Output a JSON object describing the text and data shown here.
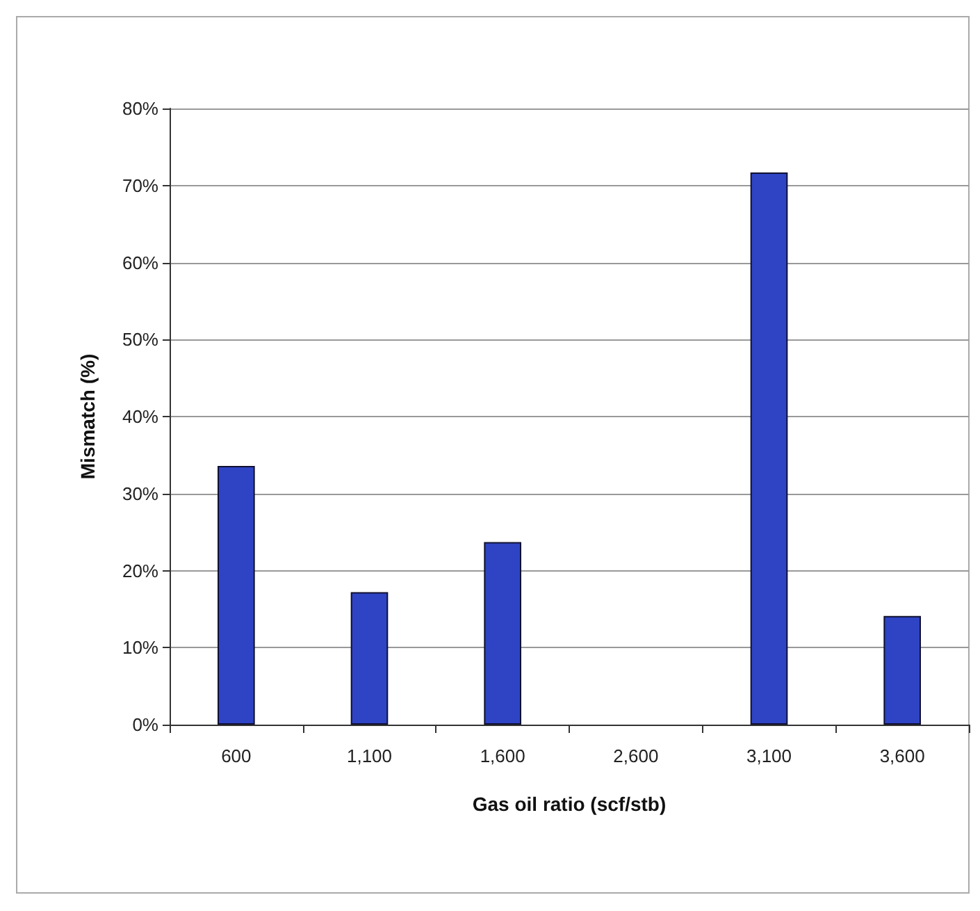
{
  "chart_data": {
    "type": "bar",
    "xlabel": "Gas oil ratio (scf/stb)",
    "ylabel": "Mismatch (%)",
    "categories": [
      "600",
      "1,100",
      "1,600",
      "2,600",
      "3,100",
      "3,600"
    ],
    "values": [
      33.6,
      17.2,
      23.7,
      0,
      71.7,
      14.1
    ],
    "color": "#2e44c4",
    "ylim": [
      0,
      80
    ],
    "yticks": [
      {
        "value": 0,
        "label": "0%"
      },
      {
        "value": 10,
        "label": "10%"
      },
      {
        "value": 20,
        "label": "20%"
      },
      {
        "value": 30,
        "label": "30%"
      },
      {
        "value": 40,
        "label": "40%"
      },
      {
        "value": 50,
        "label": "50%"
      },
      {
        "value": 60,
        "label": "60%"
      },
      {
        "value": 70,
        "label": "70%"
      },
      {
        "value": 80,
        "label": "80%"
      }
    ],
    "grid": "y"
  }
}
